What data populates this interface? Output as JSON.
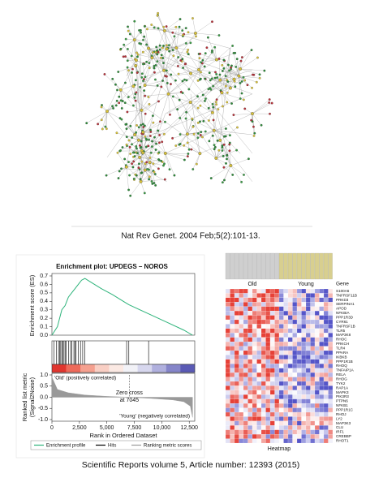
{
  "top_caption": "Nat Rev Genet. 2004 Feb;5(2):101-13.",
  "bottom_caption": "Scientific Reports volume 5, Article number: 12393 (2015)",
  "chart_data": {
    "type": "line",
    "title": "Enrichment plot: UPDEGS – NOROS",
    "ylabel": "Enrichment score (ES)",
    "xlabel": "Rank in Ordered Dataset",
    "x": [
      0,
      250,
      500,
      700,
      900,
      1200,
      1500,
      1800,
      2100,
      2400,
      2700,
      3000,
      3500,
      4500,
      5500,
      6500,
      7000,
      7500,
      9000,
      10500,
      12000,
      12800
    ],
    "series": [
      {
        "name": "Enrichment profile",
        "color": "#2db37a",
        "values": [
          0,
          0.05,
          0.1,
          0.2,
          0.3,
          0.35,
          0.45,
          0.5,
          0.55,
          0.6,
          0.65,
          0.67,
          0.63,
          0.55,
          0.48,
          0.4,
          0.36,
          0.33,
          0.24,
          0.15,
          0.06,
          0.0
        ]
      }
    ],
    "hits": {
      "name": "Hits",
      "color": "#000000",
      "x": [
        200,
        400,
        600,
        700,
        800,
        900,
        1000,
        1100,
        1200,
        1300,
        1500,
        1700,
        1800,
        2000,
        2100,
        2200,
        2400,
        2600,
        2800,
        3000,
        6800,
        7000,
        8800
      ]
    },
    "metric": {
      "name": "Ranking metric scores",
      "color": "#999999",
      "ylabel_1": "Ranked list metric",
      "ylabel_2": "(Signal2Noise)",
      "x": [
        0,
        500,
        1500,
        3000,
        5000,
        7045,
        9000,
        11000,
        12000,
        12600,
        12800
      ],
      "values": [
        0.9,
        0.35,
        0.2,
        0.1,
        0.04,
        0,
        -0.05,
        -0.12,
        -0.2,
        -0.4,
        -0.9
      ],
      "ylim": [
        -1.0,
        1.0
      ],
      "yticks": [
        {
          "value": 1.0,
          "label": "1.0"
        },
        0.5,
        {
          "value": 0,
          "label": "0.0"
        },
        -0.5,
        {
          "value": -1.0,
          "label": "-1.0"
        }
      ],
      "positive_label": "'Old' (positively correlated)",
      "negative_label": "'Young' (negatively correlated)",
      "zero_cross": {
        "value": 7045,
        "label_1": "Zero cross",
        "label_2": "at 7045"
      }
    },
    "xlim": [
      0,
      13000
    ],
    "xticks": [
      0,
      {
        "value": 2500,
        "label": "2,500"
      },
      {
        "value": 5000,
        "label": "5,000"
      },
      {
        "value": 7500,
        "label": "7,500"
      },
      {
        "value": 10000,
        "label": "10,000"
      },
      {
        "value": 12500,
        "label": "12,500"
      }
    ],
    "ylim": [
      0,
      0.7
    ],
    "yticks": [
      {
        "value": 0,
        "label": "0.0"
      },
      0.1,
      0.2,
      0.3,
      0.4,
      0.5,
      0.6,
      0.7
    ]
  },
  "heatmap": {
    "title": "Heatmap",
    "group_1": "Old",
    "group_2": "Young",
    "gene_header": "Gene",
    "genes": [
      "S100A6",
      "TNFRSF11B",
      "PRKD3",
      "SERPINA1",
      "APOD",
      "NFKBIA",
      "PPP1R3D",
      "CYR61",
      "TNFRSF1B",
      "TLR5",
      "MAP3K8",
      "RHOC",
      "PRKCH",
      "TLR4",
      "PPARA",
      "IKBKB",
      "PPP1R1B",
      "RHOQ",
      "TNFAIP1A",
      "RELA",
      "RHOG",
      "TYK2",
      "RAP1A",
      "MAPK3",
      "PIK3R3",
      "PTPN6",
      "NFKB1",
      "PPP1R1C",
      "RHOJ",
      "LY2",
      "MAP3K3",
      "CLU",
      "IRF1",
      "CREBBP",
      "RHOT1"
    ]
  }
}
